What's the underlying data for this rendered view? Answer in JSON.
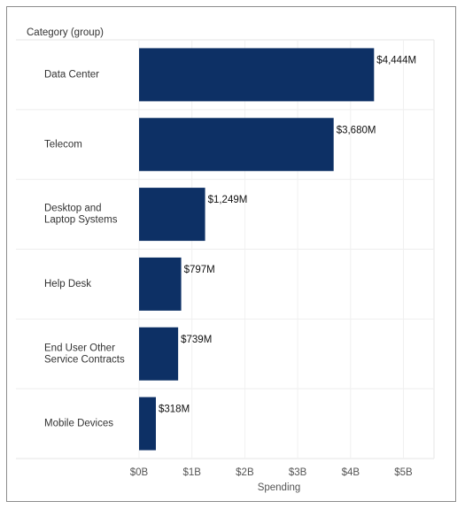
{
  "chart_data": {
    "type": "bar",
    "orientation": "horizontal",
    "category_header": "Category (group)",
    "categories": [
      [
        "Data Center"
      ],
      [
        "Telecom"
      ],
      [
        "Desktop and",
        "Laptop Systems"
      ],
      [
        "Help Desk"
      ],
      [
        "End User Other",
        "Service Contracts"
      ],
      [
        "Mobile Devices"
      ]
    ],
    "values": [
      4444,
      3680,
      1249,
      797,
      739,
      318
    ],
    "value_labels": [
      "$4,444M",
      "$3,680M",
      "$1,249M",
      "$797M",
      "$739M",
      "$318M"
    ],
    "value_unit": "$M",
    "xlabel": "Spending",
    "xticks": [
      0,
      1000,
      2000,
      3000,
      4000,
      5000
    ],
    "xtick_labels": [
      "$0B",
      "$1B",
      "$2B",
      "$3B",
      "$4B",
      "$5B"
    ],
    "xlim": [
      0,
      5500
    ],
    "grid": "vertical",
    "bar_color": "#0d3065"
  }
}
